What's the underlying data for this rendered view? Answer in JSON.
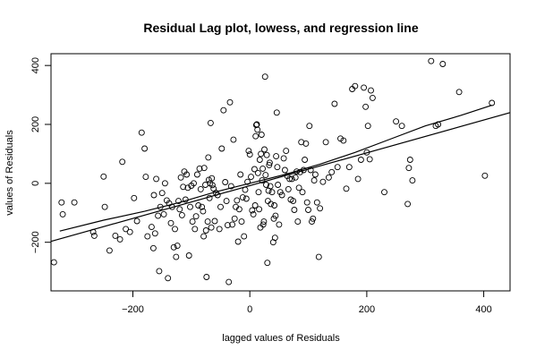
{
  "chart_data": {
    "type": "scatter",
    "title": "Residual Lag plot, lowess, and regression line",
    "xlabel": "lagged values of Residuals",
    "ylabel": "values of Residuals",
    "xlim": [
      -340,
      445
    ],
    "ylim": [
      -365,
      440
    ],
    "xticks": [
      -200,
      0,
      200,
      400
    ],
    "yticks": [
      -200,
      0,
      200,
      400
    ],
    "grid": false,
    "points": [
      [
        -335,
        -268
      ],
      [
        -322,
        -65
      ],
      [
        -320,
        -105
      ],
      [
        -300,
        -65
      ],
      [
        -268,
        -165
      ],
      [
        -266,
        -178
      ],
      [
        -250,
        23
      ],
      [
        -248,
        -80
      ],
      [
        -240,
        -228
      ],
      [
        -230,
        -178
      ],
      [
        -222,
        -190
      ],
      [
        -218,
        73
      ],
      [
        -212,
        -155
      ],
      [
        -205,
        -165
      ],
      [
        -198,
        -50
      ],
      [
        -193,
        -128
      ],
      [
        -185,
        172
      ],
      [
        -180,
        118
      ],
      [
        -178,
        22
      ],
      [
        -175,
        -180
      ],
      [
        -168,
        -148
      ],
      [
        -165,
        -220
      ],
      [
        -164,
        -40
      ],
      [
        -162,
        -170
      ],
      [
        -160,
        15
      ],
      [
        -157,
        -110
      ],
      [
        -155,
        -298
      ],
      [
        -153,
        -80
      ],
      [
        -150,
        -33
      ],
      [
        -147,
        -105
      ],
      [
        -145,
        0
      ],
      [
        -142,
        -58
      ],
      [
        -140,
        -322
      ],
      [
        -138,
        -68
      ],
      [
        -135,
        -135
      ],
      [
        -133,
        -80
      ],
      [
        -130,
        -217
      ],
      [
        -128,
        -155
      ],
      [
        -126,
        -250
      ],
      [
        -124,
        -212
      ],
      [
        -122,
        -60
      ],
      [
        -120,
        -88
      ],
      [
        -118,
        20
      ],
      [
        -116,
        -108
      ],
      [
        -114,
        -12
      ],
      [
        -112,
        40
      ],
      [
        -110,
        -55
      ],
      [
        -108,
        30
      ],
      [
        -106,
        -15
      ],
      [
        -104,
        -245
      ],
      [
        -102,
        -80
      ],
      [
        -100,
        -8
      ],
      [
        -98,
        -130
      ],
      [
        -96,
        0
      ],
      [
        -94,
        -155
      ],
      [
        -92,
        -112
      ],
      [
        -90,
        30
      ],
      [
        -88,
        -75
      ],
      [
        -86,
        50
      ],
      [
        -84,
        -20
      ],
      [
        -82,
        -80
      ],
      [
        -80,
        -95
      ],
      [
        -79,
        -180
      ],
      [
        -78,
        52
      ],
      [
        -76,
        -5
      ],
      [
        -75,
        -160
      ],
      [
        -74,
        -318
      ],
      [
        -72,
        -130
      ],
      [
        -71,
        88
      ],
      [
        -70,
        12
      ],
      [
        -69,
        -50
      ],
      [
        -68,
        0
      ],
      [
        -67,
        205
      ],
      [
        -66,
        -150
      ],
      [
        -65,
        17
      ],
      [
        -64,
        -6
      ],
      [
        -62,
        -18
      ],
      [
        -60,
        -128
      ],
      [
        -58,
        -32
      ],
      [
        -55,
        -40
      ],
      [
        -52,
        -155
      ],
      [
        -50,
        -80
      ],
      [
        -48,
        118
      ],
      [
        -45,
        248
      ],
      [
        -42,
        4
      ],
      [
        -40,
        -60
      ],
      [
        -38,
        -142
      ],
      [
        -36,
        -335
      ],
      [
        -34,
        275
      ],
      [
        -32,
        -10
      ],
      [
        -30,
        -140
      ],
      [
        -28,
        148
      ],
      [
        -26,
        -120
      ],
      [
        -24,
        -80
      ],
      [
        -22,
        -58
      ],
      [
        -20,
        -198
      ],
      [
        -18,
        -88
      ],
      [
        -16,
        30
      ],
      [
        -14,
        -130
      ],
      [
        -12,
        -48
      ],
      [
        -10,
        -180
      ],
      [
        -8,
        -22
      ],
      [
        -6,
        -52
      ],
      [
        -4,
        5
      ],
      [
        -2,
        110
      ],
      [
        0,
        98
      ],
      [
        2,
        22
      ],
      [
        4,
        -92
      ],
      [
        6,
        -105
      ],
      [
        8,
        48
      ],
      [
        9,
        -75
      ],
      [
        10,
        160
      ],
      [
        11,
        198
      ],
      [
        12,
        200
      ],
      [
        13,
        182
      ],
      [
        14,
        35
      ],
      [
        15,
        -30
      ],
      [
        16,
        -88
      ],
      [
        17,
        80
      ],
      [
        18,
        -150
      ],
      [
        19,
        100
      ],
      [
        20,
        165
      ],
      [
        21,
        10
      ],
      [
        22,
        50
      ],
      [
        23,
        -140
      ],
      [
        24,
        -130
      ],
      [
        25,
        115
      ],
      [
        26,
        362
      ],
      [
        27,
        28
      ],
      [
        28,
        -5
      ],
      [
        29,
        96
      ],
      [
        30,
        -270
      ],
      [
        31,
        -60
      ],
      [
        32,
        -25
      ],
      [
        33,
        62
      ],
      [
        34,
        70
      ],
      [
        35,
        -10
      ],
      [
        36,
        -70
      ],
      [
        38,
        -30
      ],
      [
        40,
        -200
      ],
      [
        41,
        -120
      ],
      [
        42,
        -75
      ],
      [
        43,
        -185
      ],
      [
        44,
        -110
      ],
      [
        45,
        92
      ],
      [
        46,
        240
      ],
      [
        47,
        55
      ],
      [
        48,
        -5
      ],
      [
        50,
        -140
      ],
      [
        52,
        -30
      ],
      [
        55,
        -40
      ],
      [
        58,
        85
      ],
      [
        60,
        45
      ],
      [
        62,
        110
      ],
      [
        64,
        25
      ],
      [
        66,
        -20
      ],
      [
        68,
        15
      ],
      [
        70,
        -55
      ],
      [
        72,
        15
      ],
      [
        74,
        -60
      ],
      [
        76,
        -90
      ],
      [
        78,
        20
      ],
      [
        80,
        40
      ],
      [
        82,
        -130
      ],
      [
        84,
        -15
      ],
      [
        86,
        38
      ],
      [
        88,
        140
      ],
      [
        90,
        -30
      ],
      [
        92,
        45
      ],
      [
        94,
        80
      ],
      [
        96,
        135
      ],
      [
        98,
        -65
      ],
      [
        100,
        -90
      ],
      [
        102,
        195
      ],
      [
        104,
        45
      ],
      [
        106,
        -130
      ],
      [
        108,
        -120
      ],
      [
        110,
        10
      ],
      [
        112,
        30
      ],
      [
        115,
        -65
      ],
      [
        118,
        -250
      ],
      [
        120,
        -85
      ],
      [
        125,
        5
      ],
      [
        130,
        140
      ],
      [
        135,
        20
      ],
      [
        140,
        38
      ],
      [
        145,
        270
      ],
      [
        150,
        55
      ],
      [
        155,
        152
      ],
      [
        160,
        145
      ],
      [
        165,
        -18
      ],
      [
        170,
        55
      ],
      [
        175,
        320
      ],
      [
        180,
        330
      ],
      [
        185,
        15
      ],
      [
        190,
        80
      ],
      [
        195,
        325
      ],
      [
        198,
        260
      ],
      [
        200,
        105
      ],
      [
        202,
        195
      ],
      [
        205,
        82
      ],
      [
        207,
        315
      ],
      [
        210,
        290
      ],
      [
        230,
        -30
      ],
      [
        250,
        210
      ],
      [
        260,
        195
      ],
      [
        270,
        -70
      ],
      [
        272,
        52
      ],
      [
        274,
        80
      ],
      [
        278,
        10
      ],
      [
        310,
        415
      ],
      [
        318,
        195
      ],
      [
        322,
        200
      ],
      [
        330,
        405
      ],
      [
        358,
        310
      ],
      [
        402,
        26
      ],
      [
        414,
        273
      ]
    ],
    "lowess": [
      [
        -325,
        -162
      ],
      [
        -250,
        -125
      ],
      [
        -180,
        -95
      ],
      [
        -120,
        -65
      ],
      [
        -60,
        -30
      ],
      [
        0,
        0
      ],
      [
        60,
        30
      ],
      [
        120,
        65
      ],
      [
        180,
        105
      ],
      [
        240,
        150
      ],
      [
        300,
        195
      ],
      [
        360,
        230
      ],
      [
        414,
        265
      ]
    ],
    "regression": [
      [
        -340,
        -197
      ],
      [
        445,
        240
      ]
    ]
  }
}
